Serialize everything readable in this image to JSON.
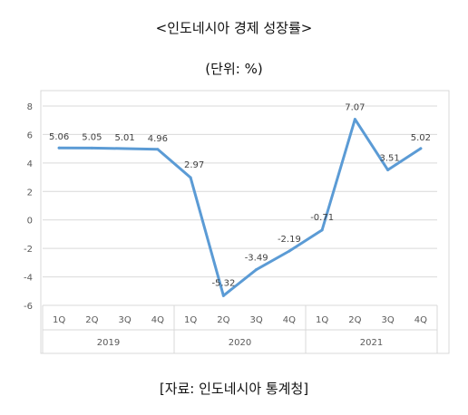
{
  "title": "<인도네시아 경제 성장률>",
  "subtitle": "(단위: %)",
  "source": "[자료: 인도네시아 통계청]",
  "chart_data": {
    "type": "line",
    "categories": [
      "1Q",
      "2Q",
      "3Q",
      "4Q",
      "1Q",
      "2Q",
      "3Q",
      "4Q",
      "1Q",
      "2Q",
      "3Q",
      "4Q"
    ],
    "groups": [
      {
        "label": "2019",
        "span": 4
      },
      {
        "label": "2020",
        "span": 4
      },
      {
        "label": "2021",
        "span": 4
      }
    ],
    "series": [
      {
        "values": [
          5.06,
          5.05,
          5.01,
          4.96,
          2.97,
          -5.32,
          -3.49,
          -2.19,
          -0.71,
          7.07,
          3.51,
          5.02
        ],
        "labels": [
          "5.06",
          "5.05",
          "5.01",
          "4.96",
          "2.97",
          "-5.32",
          "-3.49",
          "-2.19",
          "-0.71",
          "7.07",
          "3.51",
          "5.02"
        ],
        "color": "#5B9BD5"
      }
    ],
    "yticks": [
      "8",
      "6",
      "4",
      "2",
      "0",
      "-2",
      "-4",
      "-6"
    ],
    "ylim": [
      -6,
      8
    ],
    "grid": true,
    "legend": "none"
  }
}
